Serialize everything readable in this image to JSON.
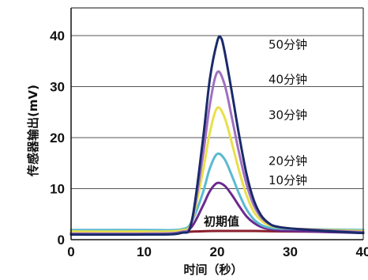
{
  "chart_data": {
    "type": "line",
    "xlabel": "时间（秒）",
    "ylabel": "传感器输出(mV)",
    "xlim": [
      0,
      40
    ],
    "ylim": [
      0,
      40
    ],
    "x_ticks": [
      "0",
      "10",
      "20",
      "30",
      "40"
    ],
    "y_ticks": [
      "0",
      "10",
      "20",
      "30",
      "40"
    ],
    "grid": "horizontal",
    "series": [
      {
        "name": "初期值",
        "color": "#8a1f2c",
        "x": [
          0,
          10,
          15,
          17,
          20,
          25,
          30,
          35,
          40
        ],
        "values": [
          1.5,
          1.5,
          1.5,
          1.6,
          1.7,
          1.7,
          1.6,
          1.6,
          1.6
        ]
      },
      {
        "name": "10分钟",
        "color": "#6b2a8f",
        "x": [
          0,
          10,
          15,
          16.5,
          18,
          19,
          20,
          21,
          22,
          23,
          24,
          25,
          26,
          27,
          28,
          30,
          35,
          40
        ],
        "values": [
          1.3,
          1.3,
          1.5,
          2.5,
          6.5,
          9.5,
          11.1,
          10.6,
          8.8,
          6.6,
          4.6,
          3.3,
          2.5,
          2.1,
          1.9,
          1.7,
          1.5,
          1.3
        ]
      },
      {
        "name": "20分钟",
        "color": "#5bbad0",
        "x": [
          0,
          10,
          15,
          16.5,
          18,
          19,
          20,
          21,
          22,
          23,
          24,
          25,
          26,
          27,
          28,
          30,
          35,
          40
        ],
        "values": [
          1.9,
          1.9,
          2.0,
          3.5,
          9.0,
          14.0,
          16.8,
          15.8,
          12.6,
          9.0,
          6.0,
          4.0,
          2.9,
          2.4,
          2.2,
          2.1,
          2.0,
          1.9
        ]
      },
      {
        "name": "30分钟",
        "color": "#e8e04a",
        "x": [
          0,
          10,
          15,
          16.5,
          18,
          19,
          20,
          21,
          22,
          23,
          24,
          25,
          26,
          27,
          28,
          30,
          35,
          40
        ],
        "values": [
          1.6,
          1.6,
          1.8,
          3.5,
          13.0,
          21.0,
          25.8,
          24.0,
          19.0,
          13.5,
          8.8,
          5.5,
          3.8,
          2.9,
          2.5,
          2.2,
          1.9,
          1.7
        ]
      },
      {
        "name": "40分钟",
        "color": "#a070c0",
        "x": [
          0,
          10,
          15,
          16.5,
          18,
          19,
          20,
          21,
          22,
          23,
          24,
          25,
          26,
          27,
          28,
          30,
          35,
          40
        ],
        "values": [
          1.2,
          1.2,
          1.5,
          3.5,
          16.0,
          26.5,
          32.8,
          30.5,
          24.0,
          17.0,
          11.0,
          6.8,
          4.4,
          3.2,
          2.6,
          2.2,
          1.8,
          1.5
        ]
      },
      {
        "name": "50分钟",
        "color": "#1a2a6a",
        "x": [
          0,
          10,
          15,
          16.5,
          18,
          19,
          20,
          20.5,
          21,
          22,
          23,
          24,
          25,
          26,
          27,
          28,
          30,
          35,
          40
        ],
        "values": [
          1.0,
          1.0,
          1.3,
          3.5,
          19.0,
          31.5,
          38.8,
          39.6,
          37.0,
          29.0,
          20.5,
          13.0,
          7.8,
          4.8,
          3.3,
          2.6,
          2.2,
          1.7,
          1.3
        ]
      }
    ]
  }
}
